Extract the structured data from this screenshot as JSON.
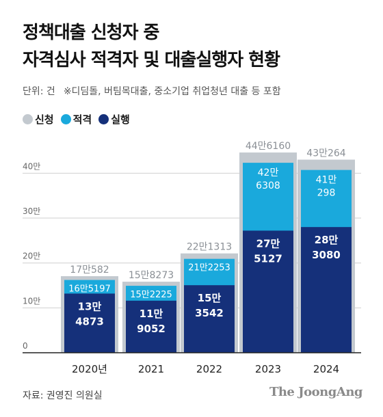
{
  "title_lines": [
    "정책대출 신청자 중",
    "자격심사 적격자 및 대출실행자 현황"
  ],
  "unit": "단위: 건",
  "note": "※디딤돌, 버팀목대출, 중소기업 취업청년 대출 등 포함",
  "source": "자료: 권영진 의원실",
  "brand": "The JoongAng",
  "colors": {
    "applied": "#c3c9cf",
    "eligible": "#1aa9dc",
    "executed": "#15307a",
    "axis": "#222222",
    "grid": "#cfcfcf"
  },
  "chart_data": {
    "type": "bar",
    "categories": [
      "2020년",
      "2021",
      "2022",
      "2023",
      "2024"
    ],
    "series": [
      {
        "name": "신청",
        "values": [
          170582,
          158273,
          221313,
          446160,
          430264
        ],
        "labels": [
          "17만582",
          "15만8273",
          "22만1313",
          "44만6160",
          "43만264"
        ]
      },
      {
        "name": "적격",
        "values": [
          165197,
          152225,
          212253,
          426308,
          410298
        ],
        "labels": [
          "16만5197",
          "15만2225",
          "21만2253",
          "42만6308",
          "41만298"
        ]
      },
      {
        "name": "실행",
        "values": [
          134873,
          119052,
          153542,
          275127,
          283080
        ],
        "labels": [
          "13만4873",
          "11만9052",
          "15만3542",
          "27만5127",
          "28만3080"
        ]
      }
    ],
    "yticks": [
      0,
      100000,
      200000,
      300000,
      400000
    ],
    "ytick_labels": [
      "0",
      "10만",
      "20만",
      "30만",
      "40만"
    ],
    "ylim": [
      0,
      460000
    ],
    "grid": true
  }
}
